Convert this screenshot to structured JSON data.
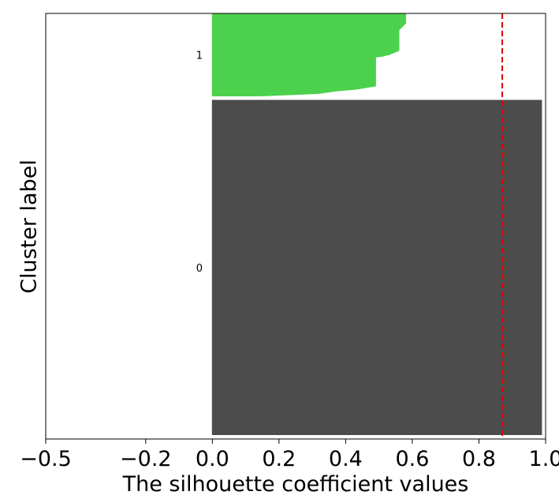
{
  "chart_data": {
    "type": "silhouette",
    "title": "",
    "xlabel": "The silhouette coefficient values",
    "ylabel": "Cluster label",
    "xlim": [
      -0.5,
      1.0
    ],
    "xticks": [
      -0.5,
      -0.2,
      0.0,
      0.2,
      0.4,
      0.6,
      0.8,
      1.0
    ],
    "xtick_labels": [
      "−0.5",
      "−0.2",
      "0.0",
      "0.2",
      "0.4",
      "0.6",
      "0.8",
      "1.0"
    ],
    "average_silhouette_score": 0.87,
    "average_line_color": "#dd0000",
    "clusters": [
      {
        "label": "0",
        "color": "#4c4c4c",
        "samples": 77,
        "profile": [
          {
            "frac": 0.0,
            "value": 0.988
          },
          {
            "frac": 1.0,
            "value": 0.988
          }
        ]
      },
      {
        "label": "1",
        "color": "#4cd14c",
        "samples": 19,
        "profile": [
          {
            "frac": 0.0,
            "value": 0.145
          },
          {
            "frac": 0.03,
            "value": 0.32
          },
          {
            "frac": 0.06,
            "value": 0.37
          },
          {
            "frac": 0.08,
            "value": 0.43
          },
          {
            "frac": 0.12,
            "value": 0.49
          },
          {
            "frac": 0.47,
            "value": 0.49
          },
          {
            "frac": 0.48,
            "value": 0.51
          },
          {
            "frac": 0.5,
            "value": 0.53
          },
          {
            "frac": 0.55,
            "value": 0.56
          },
          {
            "frac": 0.8,
            "value": 0.56
          },
          {
            "frac": 0.84,
            "value": 0.57
          },
          {
            "frac": 0.88,
            "value": 0.58
          },
          {
            "frac": 1.0,
            "value": 0.58
          }
        ]
      }
    ]
  }
}
